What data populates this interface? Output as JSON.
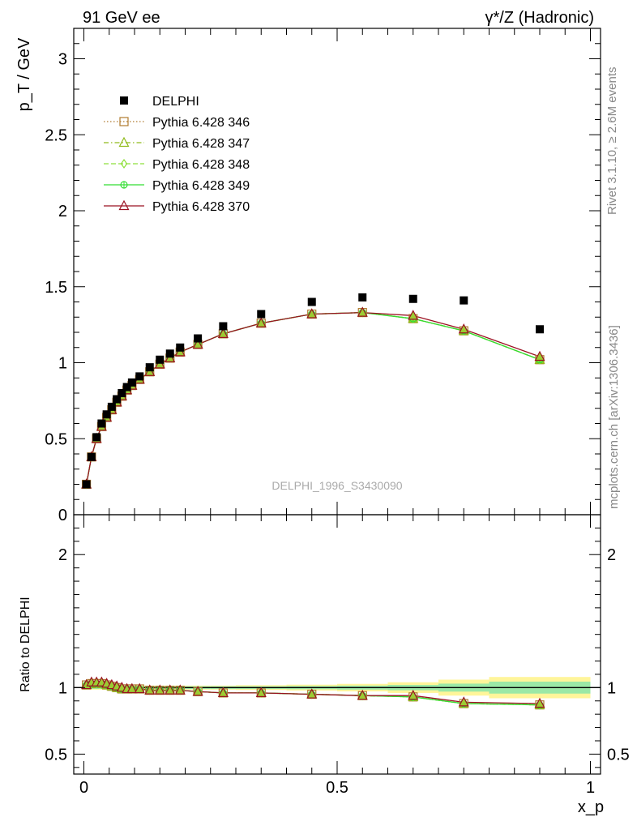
{
  "header": {
    "left_label": "91 GeV ee",
    "right_label": "γ*/Z (Hadronic)"
  },
  "side_labels": {
    "rivet": "Rivet 3.1.10, ≥ 2.6M events",
    "mcplots": "mcplots.cern.ch [arXiv:1306.3436]"
  },
  "chart_data": [
    {
      "type": "line",
      "panel": "main",
      "ylabel": "p_T / GeV",
      "ylim": [
        0,
        3.2
      ],
      "xlim": [
        -0.02,
        1.02
      ],
      "y_ticks": [
        0,
        0.5,
        1,
        1.5,
        2,
        2.5,
        3
      ],
      "y_tick_labels": [
        "0",
        "0.5",
        "1",
        "1.5",
        "2",
        "2.5",
        "3"
      ],
      "analysis_label": "DELPHI_1996_S3430090",
      "legend_position": "top-left",
      "x": [
        0.005,
        0.015,
        0.025,
        0.035,
        0.045,
        0.055,
        0.065,
        0.075,
        0.085,
        0.095,
        0.11,
        0.13,
        0.15,
        0.17,
        0.19,
        0.225,
        0.275,
        0.35,
        0.45,
        0.55,
        0.65,
        0.75,
        0.9
      ],
      "series": [
        {
          "name": "DELPHI",
          "color": "#000000",
          "marker": "square-filled",
          "values": [
            0.2,
            0.38,
            0.51,
            0.6,
            0.66,
            0.71,
            0.76,
            0.8,
            0.84,
            0.87,
            0.91,
            0.97,
            1.02,
            1.06,
            1.1,
            1.16,
            1.24,
            1.32,
            1.4,
            1.43,
            1.42,
            1.41,
            1.22
          ]
        },
        {
          "name": "Pythia 6.428 346",
          "color": "#b07c30",
          "marker": "square-open",
          "dash": "1.5,2.5",
          "values": [
            0.2,
            0.38,
            0.5,
            0.58,
            0.64,
            0.69,
            0.74,
            0.78,
            0.82,
            0.85,
            0.89,
            0.94,
            0.99,
            1.03,
            1.07,
            1.12,
            1.19,
            1.26,
            1.32,
            1.33,
            1.29,
            1.21,
            1.02
          ]
        },
        {
          "name": "Pythia 6.428 347",
          "color": "#8fba1a",
          "marker": "triangle-open",
          "dash": "6,3,1.5,3",
          "values": [
            0.2,
            0.38,
            0.5,
            0.58,
            0.64,
            0.69,
            0.74,
            0.78,
            0.82,
            0.85,
            0.89,
            0.94,
            0.99,
            1.03,
            1.07,
            1.12,
            1.19,
            1.26,
            1.32,
            1.33,
            1.29,
            1.21,
            1.02
          ]
        },
        {
          "name": "Pythia 6.428 348",
          "color": "#8ee03a",
          "marker": "diamond-open",
          "dash": "6,3",
          "values": [
            0.2,
            0.38,
            0.5,
            0.58,
            0.64,
            0.69,
            0.74,
            0.78,
            0.82,
            0.85,
            0.89,
            0.94,
            0.99,
            1.03,
            1.07,
            1.12,
            1.19,
            1.26,
            1.32,
            1.33,
            1.29,
            1.21,
            1.02
          ]
        },
        {
          "name": "Pythia 6.428 349",
          "color": "#33dd33",
          "marker": "circle-cross",
          "dash": "",
          "values": [
            0.2,
            0.38,
            0.5,
            0.58,
            0.64,
            0.69,
            0.74,
            0.78,
            0.82,
            0.85,
            0.89,
            0.94,
            0.99,
            1.03,
            1.07,
            1.12,
            1.19,
            1.26,
            1.32,
            1.33,
            1.29,
            1.21,
            1.02
          ]
        },
        {
          "name": "Pythia 6.428 370",
          "color": "#9b1122",
          "marker": "triangle-open",
          "dash": "",
          "values": [
            0.2,
            0.38,
            0.5,
            0.58,
            0.64,
            0.69,
            0.74,
            0.78,
            0.82,
            0.85,
            0.89,
            0.94,
            0.99,
            1.03,
            1.07,
            1.12,
            1.19,
            1.26,
            1.32,
            1.33,
            1.31,
            1.22,
            1.04
          ]
        }
      ]
    },
    {
      "type": "line",
      "panel": "ratio",
      "ylabel": "Ratio to DELPHI",
      "xlabel": "x_p",
      "ylim": [
        0.35,
        2.3
      ],
      "xlim": [
        -0.02,
        1.02
      ],
      "y_ticks": [
        0.5,
        1,
        2
      ],
      "y_tick_labels": [
        "0.5",
        "1",
        "2"
      ],
      "x_ticks": [
        0,
        0.5,
        1
      ],
      "x_tick_labels": [
        "0",
        "0.5",
        "1"
      ],
      "reference_line": 1,
      "x": [
        0.005,
        0.015,
        0.025,
        0.035,
        0.045,
        0.055,
        0.065,
        0.075,
        0.085,
        0.095,
        0.11,
        0.13,
        0.15,
        0.17,
        0.19,
        0.225,
        0.275,
        0.35,
        0.45,
        0.55,
        0.65,
        0.75,
        0.9
      ],
      "bands": [
        {
          "x_edges": [
            0.0,
            0.01,
            0.02,
            0.03,
            0.04,
            0.05,
            0.06,
            0.07,
            0.08,
            0.09,
            0.1,
            0.12,
            0.14,
            0.16,
            0.18,
            0.2,
            0.25,
            0.3,
            0.4,
            0.5,
            0.6,
            0.7,
            0.8,
            1.0
          ],
          "stat_half_width": [
            0.01,
            0.01,
            0.01,
            0.01,
            0.01,
            0.01,
            0.01,
            0.01,
            0.01,
            0.01,
            0.01,
            0.01,
            0.01,
            0.01,
            0.01,
            0.01,
            0.01,
            0.01,
            0.012,
            0.015,
            0.02,
            0.03,
            0.045
          ],
          "total_half_width": [
            0.015,
            0.015,
            0.015,
            0.015,
            0.015,
            0.015,
            0.015,
            0.015,
            0.015,
            0.015,
            0.015,
            0.015,
            0.015,
            0.015,
            0.015,
            0.015,
            0.015,
            0.018,
            0.022,
            0.028,
            0.04,
            0.06,
            0.08
          ]
        }
      ],
      "series": [
        {
          "name": "Pythia 6.428 346",
          "color": "#b07c30",
          "marker": "square-open",
          "dash": "1.5,2.5",
          "values": [
            1.02,
            1.03,
            1.03,
            1.03,
            1.02,
            1.01,
            1.0,
            0.99,
            0.99,
            0.99,
            0.99,
            0.98,
            0.98,
            0.98,
            0.98,
            0.97,
            0.96,
            0.96,
            0.95,
            0.94,
            0.93,
            0.88,
            0.87
          ]
        },
        {
          "name": "Pythia 6.428 347",
          "color": "#8fba1a",
          "marker": "triangle-open",
          "dash": "6,3,1.5,3",
          "values": [
            1.02,
            1.03,
            1.03,
            1.03,
            1.02,
            1.01,
            1.0,
            0.99,
            0.99,
            0.99,
            0.99,
            0.98,
            0.98,
            0.98,
            0.98,
            0.97,
            0.96,
            0.96,
            0.95,
            0.94,
            0.93,
            0.88,
            0.87
          ]
        },
        {
          "name": "Pythia 6.428 348",
          "color": "#8ee03a",
          "marker": "diamond-open",
          "dash": "6,3",
          "values": [
            1.02,
            1.03,
            1.03,
            1.03,
            1.02,
            1.01,
            1.0,
            0.99,
            0.99,
            0.99,
            0.99,
            0.98,
            0.98,
            0.98,
            0.98,
            0.97,
            0.96,
            0.96,
            0.95,
            0.94,
            0.93,
            0.88,
            0.87
          ]
        },
        {
          "name": "Pythia 6.428 349",
          "color": "#33dd33",
          "marker": "circle-cross",
          "dash": "",
          "values": [
            1.02,
            1.03,
            1.03,
            1.03,
            1.02,
            1.01,
            1.0,
            0.99,
            0.99,
            0.99,
            0.99,
            0.98,
            0.98,
            0.98,
            0.98,
            0.97,
            0.96,
            0.96,
            0.95,
            0.94,
            0.93,
            0.88,
            0.87
          ]
        },
        {
          "name": "Pythia 6.428 370",
          "color": "#9b1122",
          "marker": "triangle-open",
          "dash": "",
          "values": [
            1.02,
            1.04,
            1.04,
            1.04,
            1.03,
            1.02,
            1.01,
            1.0,
            0.99,
            0.99,
            0.99,
            0.98,
            0.98,
            0.98,
            0.98,
            0.97,
            0.96,
            0.96,
            0.95,
            0.94,
            0.94,
            0.89,
            0.88
          ]
        }
      ]
    }
  ]
}
